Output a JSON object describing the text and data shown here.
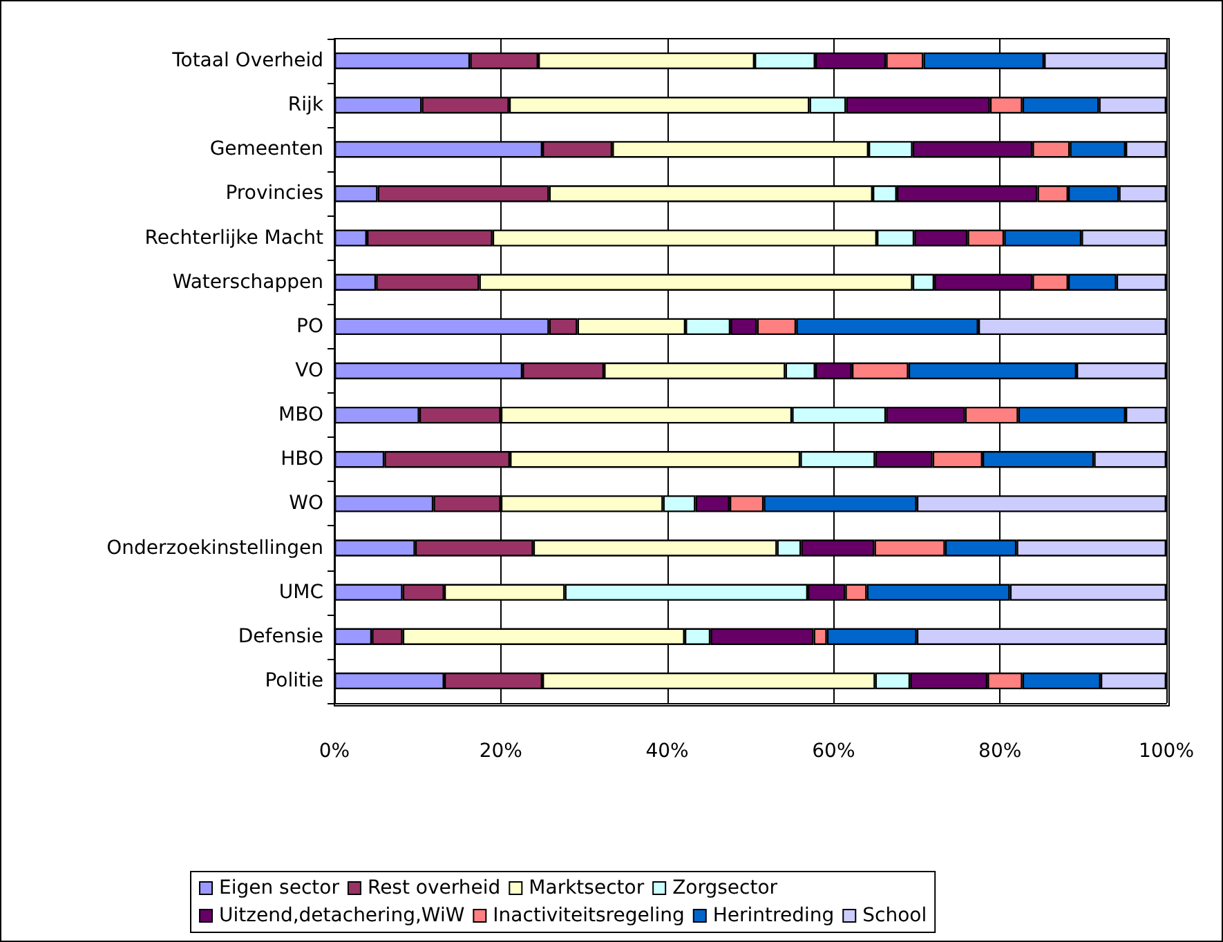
{
  "chart_data": {
    "type": "bar",
    "orientation": "horizontal",
    "stacked": true,
    "categories": [
      "Totaal Overheid",
      "Rijk",
      "Gemeenten",
      "Provincies",
      "Rechterlijke Macht",
      "Waterschappen",
      "PO",
      "VO",
      "MBO",
      "HBO",
      "WO",
      "Onderzoekinstellingen",
      "UMC",
      "Defensie",
      "Politie"
    ],
    "series": [
      {
        "name": "Eigen sector",
        "color": "#9999ff",
        "values": [
          16.3,
          10.5,
          25.0,
          5.2,
          3.9,
          5.0,
          25.8,
          22.6,
          10.2,
          6.0,
          11.9,
          9.7,
          8.2,
          4.5,
          13.2
        ]
      },
      {
        "name": "Rest overheid",
        "color": "#993366",
        "values": [
          8.2,
          10.5,
          8.4,
          20.6,
          15.1,
          12.4,
          3.4,
          9.8,
          9.8,
          15.1,
          8.1,
          14.2,
          5.0,
          3.7,
          11.8
        ]
      },
      {
        "name": "Marktsector",
        "color": "#ffffcc",
        "values": [
          26.0,
          36.1,
          30.8,
          38.9,
          46.2,
          52.1,
          13.0,
          21.8,
          35.0,
          34.9,
          19.5,
          29.3,
          14.5,
          33.9,
          40.0
        ]
      },
      {
        "name": "Zorgsector",
        "color": "#ccffff",
        "values": [
          7.3,
          4.4,
          5.3,
          2.9,
          4.5,
          2.6,
          5.4,
          3.6,
          11.3,
          9.0,
          3.9,
          2.9,
          29.2,
          3.1,
          4.2
        ]
      },
      {
        "name": "Uitzend,detachering,WiW",
        "color": "#660066",
        "values": [
          8.5,
          17.3,
          14.4,
          16.9,
          6.4,
          11.8,
          3.2,
          4.4,
          9.5,
          6.9,
          4.1,
          8.8,
          4.5,
          12.4,
          9.3
        ]
      },
      {
        "name": "Inactiviteitsregeling",
        "color": "#ff8080",
        "values": [
          4.5,
          3.9,
          4.5,
          3.7,
          4.4,
          4.3,
          4.7,
          6.8,
          6.4,
          6.0,
          4.1,
          8.5,
          2.6,
          1.6,
          4.2
        ]
      },
      {
        "name": "Herintreding",
        "color": "#0066cc",
        "values": [
          14.5,
          9.2,
          6.7,
          6.1,
          9.3,
          5.8,
          21.9,
          20.2,
          12.9,
          13.4,
          18.4,
          8.6,
          17.2,
          10.8,
          9.4
        ]
      },
      {
        "name": "School",
        "color": "#ccccff",
        "values": [
          14.7,
          8.1,
          4.9,
          5.7,
          10.2,
          6.0,
          22.6,
          10.8,
          4.9,
          8.7,
          30.0,
          18.0,
          18.8,
          30.0,
          7.9
        ]
      }
    ],
    "xlim": [
      0,
      100
    ],
    "xticks": [
      {
        "value": 0,
        "label": "0%"
      },
      {
        "value": 20,
        "label": "20%"
      },
      {
        "value": 40,
        "label": "40%"
      },
      {
        "value": 60,
        "label": "60%"
      },
      {
        "value": 80,
        "label": "80%"
      },
      {
        "value": 100,
        "label": "100%"
      }
    ],
    "grid": "x",
    "legend": "bottom"
  }
}
